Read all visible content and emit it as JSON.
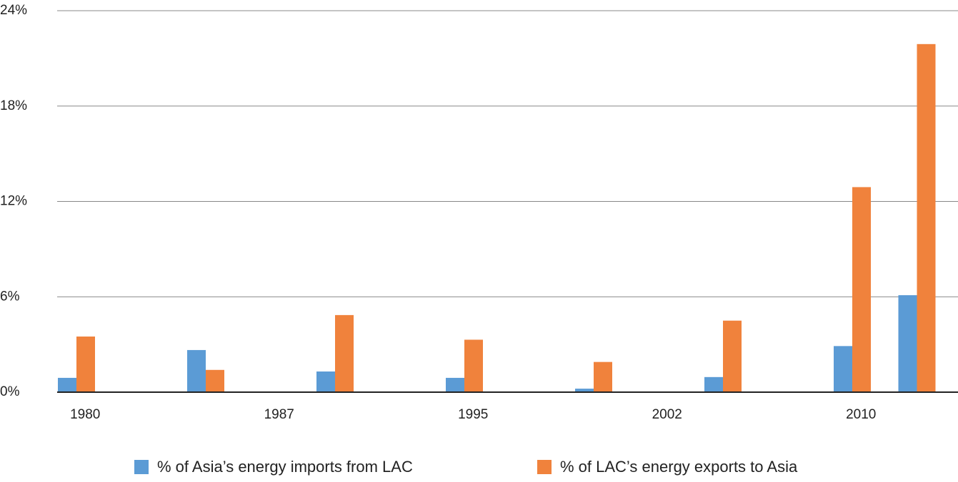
{
  "chart_data": {
    "type": "bar",
    "categories": [
      "1980",
      null,
      null,
      "1987",
      null,
      null,
      "1995",
      null,
      null,
      "2002",
      null,
      null,
      "2010",
      null
    ],
    "series": [
      {
        "name": "% of Asia’s energy imports from LAC",
        "color": "#5b9bd5",
        "values": [
          0.9,
          null,
          2.65,
          null,
          1.3,
          null,
          0.9,
          null,
          0.22,
          null,
          0.95,
          null,
          2.9,
          6.1
        ]
      },
      {
        "name": "% of LAC’s energy exports to Asia",
        "color": "#f0823c",
        "values": [
          3.5,
          null,
          1.4,
          null,
          4.85,
          null,
          3.3,
          null,
          1.9,
          null,
          4.5,
          null,
          12.9,
          21.9
        ]
      }
    ],
    "ylim": [
      0,
      24
    ],
    "yticks": [
      {
        "value": 0,
        "label": "0%"
      },
      {
        "value": 6,
        "label": "6%"
      },
      {
        "value": 12,
        "label": "12%"
      },
      {
        "value": 18,
        "label": "18%"
      },
      {
        "value": 24,
        "label": "24%"
      }
    ],
    "grid": true
  }
}
